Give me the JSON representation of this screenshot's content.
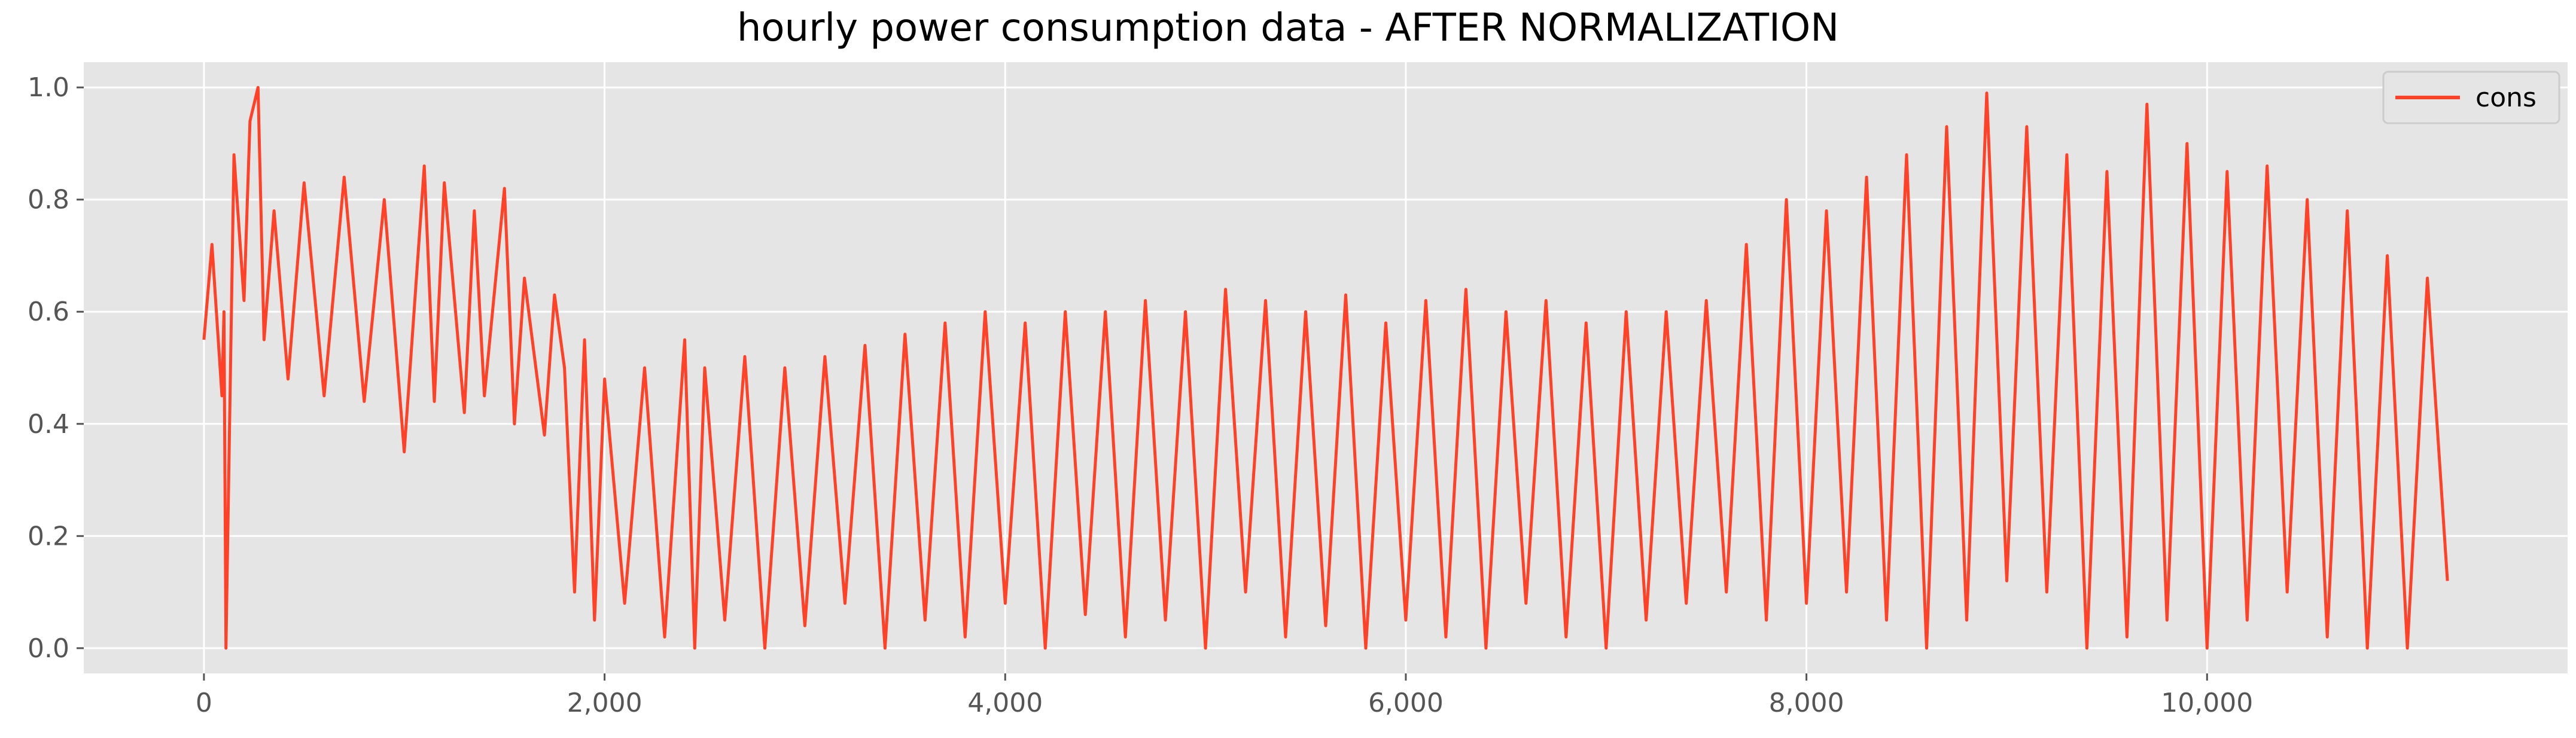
{
  "chart_data": {
    "type": "line",
    "title": "hourly power consumption data - AFTER NORMALIZATION",
    "xlabel": "",
    "ylabel": "",
    "xlim": [
      -600,
      11800
    ],
    "ylim": [
      -0.045,
      1.045
    ],
    "x_ticks": [
      0,
      2000,
      4000,
      6000,
      8000,
      10000
    ],
    "x_tick_labels": [
      "0",
      "2,000",
      "4,000",
      "6,000",
      "8,000",
      "10,000"
    ],
    "y_ticks": [
      0.0,
      0.2,
      0.4,
      0.6,
      0.8,
      1.0
    ],
    "y_tick_labels": [
      "0.0",
      "0.2",
      "0.4",
      "0.6",
      "0.8",
      "1.0"
    ],
    "grid": true,
    "legend": {
      "placement": "top-right",
      "entries": [
        "cons"
      ]
    },
    "series": [
      {
        "name": "cons",
        "color": "#ff4127",
        "x": [
          0,
          40,
          90,
          100,
          110,
          150,
          200,
          230,
          270,
          300,
          350,
          420,
          500,
          600,
          700,
          800,
          900,
          1000,
          1100,
          1150,
          1200,
          1300,
          1350,
          1400,
          1500,
          1550,
          1600,
          1700,
          1750,
          1800,
          1850,
          1900,
          1950,
          2000,
          2100,
          2200,
          2300,
          2400,
          2450,
          2500,
          2600,
          2700,
          2800,
          2900,
          3000,
          3100,
          3200,
          3300,
          3400,
          3500,
          3600,
          3700,
          3800,
          3900,
          4000,
          4100,
          4200,
          4300,
          4400,
          4500,
          4600,
          4700,
          4800,
          4900,
          5000,
          5100,
          5200,
          5300,
          5400,
          5500,
          5600,
          5700,
          5800,
          5900,
          6000,
          6100,
          6200,
          6300,
          6400,
          6500,
          6600,
          6700,
          6800,
          6900,
          7000,
          7100,
          7200,
          7300,
          7400,
          7500,
          7600,
          7700,
          7800,
          7900,
          8000,
          8100,
          8200,
          8300,
          8400,
          8500,
          8600,
          8700,
          8800,
          8900,
          9000,
          9100,
          9200,
          9300,
          9400,
          9500,
          9600,
          9700,
          9800,
          9900,
          10000,
          10100,
          10200,
          10300,
          10400,
          10500,
          10600,
          10700,
          10800,
          10900,
          11000,
          11100,
          11200
        ],
        "values": [
          0.55,
          0.72,
          0.45,
          0.6,
          0.0,
          0.88,
          0.62,
          0.94,
          1.0,
          0.55,
          0.78,
          0.48,
          0.83,
          0.45,
          0.84,
          0.44,
          0.8,
          0.35,
          0.86,
          0.44,
          0.83,
          0.42,
          0.78,
          0.45,
          0.82,
          0.4,
          0.66,
          0.38,
          0.63,
          0.5,
          0.1,
          0.55,
          0.05,
          0.48,
          0.08,
          0.5,
          0.02,
          0.55,
          0.0,
          0.5,
          0.05,
          0.52,
          0.0,
          0.5,
          0.04,
          0.52,
          0.08,
          0.54,
          0.0,
          0.56,
          0.05,
          0.58,
          0.02,
          0.6,
          0.08,
          0.58,
          0.0,
          0.6,
          0.06,
          0.6,
          0.02,
          0.62,
          0.05,
          0.6,
          0.0,
          0.64,
          0.1,
          0.62,
          0.02,
          0.6,
          0.04,
          0.63,
          0.0,
          0.58,
          0.05,
          0.62,
          0.02,
          0.64,
          0.0,
          0.6,
          0.08,
          0.62,
          0.02,
          0.58,
          0.0,
          0.6,
          0.05,
          0.6,
          0.08,
          0.62,
          0.1,
          0.72,
          0.05,
          0.8,
          0.08,
          0.78,
          0.1,
          0.84,
          0.05,
          0.88,
          0.0,
          0.93,
          0.05,
          0.99,
          0.12,
          0.93,
          0.1,
          0.88,
          0.0,
          0.85,
          0.02,
          0.97,
          0.05,
          0.9,
          0.0,
          0.85,
          0.05,
          0.86,
          0.1,
          0.8,
          0.02,
          0.78,
          0.0,
          0.7,
          0.0,
          0.66,
          0.12
        ]
      }
    ]
  }
}
